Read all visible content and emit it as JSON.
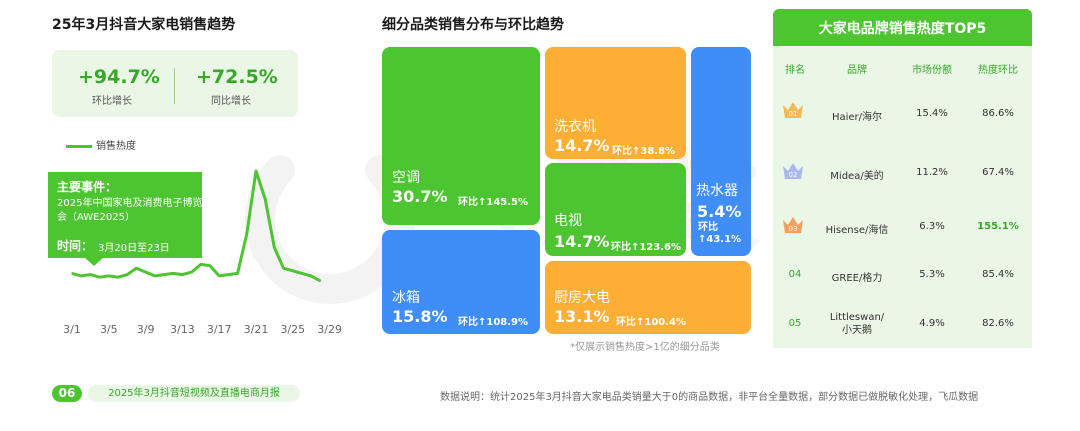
{
  "left": {
    "title": "25年3月抖音大家电销售趋势",
    "kpi": [
      {
        "value": "+94.7%",
        "label": "环比增长"
      },
      {
        "value": "+72.5%",
        "label": "同比增长"
      }
    ],
    "legend": "销售热度",
    "event": {
      "title": "主要事件：",
      "body": "2025年中国家电及消费电子博览会（AWE2025）",
      "time_label": "时间：",
      "time_value": "3月20日至23日"
    }
  },
  "middle": {
    "title": "细分品类销售分布与环比趋势",
    "note": "*仅展示销售热度>1亿的细分品类"
  },
  "right": {
    "title": "大家电品牌销售热度TOP5",
    "headers": [
      "排名",
      "品牌",
      "市场份额",
      "热度环比"
    ],
    "rows": [
      {
        "rank": "01",
        "brand": "Haier/海尔",
        "share": "15.4%",
        "mom": "86.6%"
      },
      {
        "rank": "02",
        "brand": "Midea/美的",
        "share": "11.2%",
        "mom": "67.4%"
      },
      {
        "rank": "03",
        "brand": "Hisense/海信",
        "share": "6.3%",
        "mom": "155.1%"
      },
      {
        "rank": "04",
        "brand": "GREE/格力",
        "share": "5.3%",
        "mom": "85.4%"
      },
      {
        "rank": "05",
        "brand": "Littleswan/\n小天鹅",
        "share": "4.9%",
        "mom": "82.6%"
      }
    ]
  },
  "footer": {
    "page": "06",
    "report": "2025年3月抖音短视频及直播电商月报",
    "note": "数据说明：统计2025年3月抖音大家电品类销量大于0的商品数据，非平台全量数据，部分数据已做脱敏化处理，飞瓜数据"
  },
  "colors": {
    "green": "#4cc531",
    "dark_green": "#38a829",
    "orange": "#fcae35",
    "blue": "#3f8ef7",
    "light_green": "#eaf6e6"
  },
  "chart_data": [
    {
      "type": "line",
      "title": "",
      "series": [
        {
          "name": "销售热度",
          "values": [
            13,
            11,
            12,
            10,
            11,
            10,
            12,
            17,
            14,
            11,
            12,
            13,
            12,
            14,
            20,
            19,
            11,
            12,
            13,
            44,
            93,
            71,
            33,
            17,
            15,
            13,
            11,
            7
          ]
        }
      ],
      "x": [
        "3/1",
        "3/2",
        "3/3",
        "3/4",
        "3/5",
        "3/6",
        "3/7",
        "3/8",
        "3/9",
        "3/10",
        "3/11",
        "3/12",
        "3/13",
        "3/14",
        "3/15",
        "3/16",
        "3/17",
        "3/18",
        "3/19",
        "3/20",
        "3/21",
        "3/22",
        "3/23",
        "3/24",
        "3/25",
        "3/26",
        "3/27",
        "3/28"
      ],
      "xticks": [
        "3/1",
        "3/5",
        "3/9",
        "3/13",
        "3/17",
        "3/21",
        "3/25",
        "3/29"
      ],
      "ylim": [
        0,
        100
      ],
      "grid": false,
      "legend": "top-left"
    },
    {
      "type": "treemap",
      "items": [
        {
          "name": "空调",
          "share": "30.7%",
          "mom": "环比↑145.5%",
          "color": "#4cc531"
        },
        {
          "name": "冰箱",
          "share": "15.8%",
          "mom": "环比↑108.9%",
          "color": "#3f8ef7"
        },
        {
          "name": "洗衣机",
          "share": "14.7%",
          "mom": "环比↑38.8%",
          "color": "#fcae35"
        },
        {
          "name": "电视",
          "share": "14.7%",
          "mom": "环比↑123.6%",
          "color": "#4cc531"
        },
        {
          "name": "厨房大电",
          "share": "13.1%",
          "mom": "环比↑100.4%",
          "color": "#fcae35"
        },
        {
          "name": "热水器",
          "share": "5.4%",
          "mom": "环比\n↑43.1%",
          "color": "#3f8ef7"
        }
      ]
    }
  ]
}
